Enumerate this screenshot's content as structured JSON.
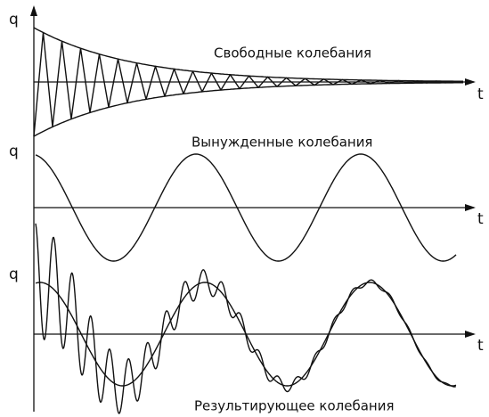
{
  "panels": [
    {
      "y_label": "q",
      "x_label": "t",
      "caption": "Свободные колебания"
    },
    {
      "y_label": "q",
      "x_label": "t",
      "caption": "Вынужденные колебания"
    },
    {
      "y_label": "q",
      "x_label": "t",
      "caption": "Результирующее колебания"
    }
  ]
}
